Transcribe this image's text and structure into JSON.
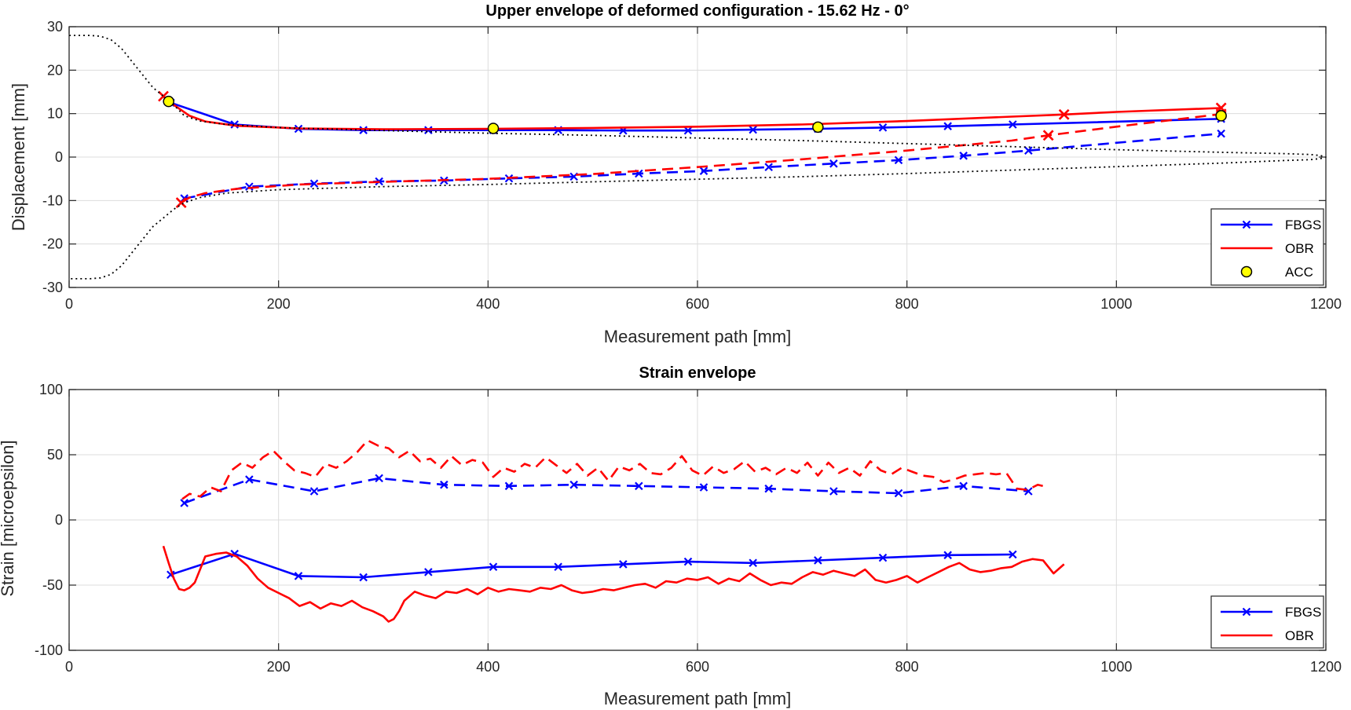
{
  "chart_data": [
    {
      "type": "line",
      "title": "Upper envelope of deformed configuration - 15.62 Hz - 0°",
      "xlabel": "Measurement path [mm]",
      "ylabel": "Displacement [mm]",
      "xlim": [
        0,
        1200
      ],
      "ylim": [
        -30,
        30
      ],
      "xticks": [
        0,
        200,
        400,
        600,
        800,
        1000,
        1200
      ],
      "yticks": [
        -30,
        -20,
        -10,
        0,
        10,
        20,
        30
      ],
      "grid": true,
      "legend_position": "bottom-right",
      "legend": [
        "FBGS",
        "OBR",
        "ACC"
      ],
      "series": [
        {
          "name": "FBGS",
          "color": "#0000ff",
          "style": "solid",
          "marker": "x",
          "x": [
            97,
            158,
            219,
            281,
            343,
            405,
            467,
            529,
            591,
            653,
            715,
            777,
            839,
            901,
            1100
          ],
          "y": [
            12.5,
            7.5,
            6.5,
            6.2,
            6.2,
            6.2,
            6.2,
            6.1,
            6.1,
            6.3,
            6.5,
            6.8,
            7.1,
            7.5,
            8.8
          ]
        },
        {
          "name": "FBGS",
          "color": "#0000ff",
          "style": "dashed",
          "marker": "x",
          "x": [
            110,
            172,
            234,
            296,
            358,
            420,
            482,
            544,
            606,
            668,
            730,
            792,
            854,
            916,
            1100
          ],
          "y": [
            -9.5,
            -6.8,
            -6.1,
            -5.6,
            -5.4,
            -4.9,
            -4.5,
            -3.8,
            -3.2,
            -2.3,
            -1.5,
            -0.7,
            0.3,
            1.5,
            5.4
          ]
        },
        {
          "name": "OBR",
          "color": "#ff0000",
          "style": "solid",
          "marker": "end-x",
          "x": [
            90,
            100,
            115,
            130,
            160,
            220,
            300,
            400,
            500,
            600,
            700,
            800,
            900,
            950,
            1000,
            1100
          ],
          "y": [
            14,
            12,
            9.5,
            8.2,
            7.2,
            6.6,
            6.4,
            6.5,
            6.7,
            7.0,
            7.5,
            8.3,
            9.3,
            9.8,
            10.4,
            11.3
          ]
        },
        {
          "name": "OBR",
          "color": "#ff0000",
          "style": "dashed",
          "marker": "end-x",
          "x": [
            107,
            115,
            130,
            160,
            220,
            300,
            400,
            500,
            600,
            700,
            800,
            900,
            935,
            1000,
            1100
          ],
          "y": [
            -10.5,
            -9.3,
            -8.3,
            -7.3,
            -6.3,
            -5.7,
            -5.0,
            -3.9,
            -2.3,
            -0.5,
            1.5,
            3.8,
            5.0,
            7.0,
            9.9
          ]
        },
        {
          "name": "",
          "color": "#000000",
          "style": "dotted",
          "marker": "none",
          "x": [
            0,
            10,
            20,
            30,
            40,
            50,
            60,
            70,
            80,
            90,
            100,
            110,
            125,
            150,
            200,
            300,
            400,
            500,
            600,
            700,
            800,
            900,
            1000,
            1100,
            1160,
            1185,
            1195,
            1200,
            1195,
            1185,
            1160,
            1100,
            1000,
            900,
            800,
            700,
            600,
            500,
            400,
            300,
            200,
            150,
            125,
            110,
            100,
            90,
            80,
            70,
            60,
            50,
            40,
            30,
            20,
            10,
            0
          ],
          "y": [
            28,
            28,
            28,
            27.8,
            27,
            25,
            22,
            19,
            16,
            14,
            12,
            9.5,
            8.3,
            7.5,
            6.8,
            6.1,
            5.5,
            5.0,
            4.4,
            3.8,
            3.1,
            2.4,
            1.7,
            1.1,
            0.8,
            0.6,
            0.35,
            0,
            -0.35,
            -0.6,
            -0.8,
            -1.4,
            -2.2,
            -3.0,
            -3.8,
            -4.5,
            -5.1,
            -5.7,
            -6.3,
            -6.8,
            -7.5,
            -8.3,
            -9.3,
            -10.5,
            -12,
            -14,
            -16,
            -19,
            -22,
            -25,
            -27,
            -27.8,
            -28,
            -28,
            -28
          ]
        },
        {
          "name": "ACC",
          "color": "#ffff00",
          "style": "none",
          "marker": "circle",
          "x": [
            95,
            405,
            715,
            1100
          ],
          "y": [
            12.8,
            6.6,
            6.9,
            9.5
          ]
        }
      ]
    },
    {
      "type": "line",
      "title": "Strain envelope",
      "xlabel": "Measurement path [mm]",
      "ylabel": "Strain [microepsilon]",
      "xlim": [
        0,
        1200
      ],
      "ylim": [
        -100,
        100
      ],
      "xticks": [
        0,
        200,
        400,
        600,
        800,
        1000,
        1200
      ],
      "yticks": [
        -100,
        -50,
        0,
        50,
        100
      ],
      "grid": true,
      "legend_position": "bottom-right",
      "legend": [
        "FBGS",
        "OBR"
      ],
      "series": [
        {
          "name": "FBGS",
          "color": "#0000ff",
          "style": "solid",
          "marker": "x",
          "x": [
            97,
            158,
            219,
            281,
            343,
            405,
            467,
            529,
            591,
            653,
            715,
            777,
            839,
            901
          ],
          "y": [
            -42,
            -26,
            -43,
            -44,
            -40,
            -36,
            -36,
            -34,
            -32,
            -33,
            -31,
            -29,
            -27,
            -26.5
          ]
        },
        {
          "name": "FBGS",
          "color": "#0000ff",
          "style": "dashed",
          "marker": "x",
          "x": [
            110,
            172,
            234,
            296,
            358,
            420,
            482,
            544,
            606,
            668,
            730,
            792,
            854,
            916
          ],
          "y": [
            13,
            31,
            22,
            32,
            27,
            26,
            27,
            26,
            25,
            24,
            22,
            20.5,
            26,
            22
          ]
        },
        {
          "name": "OBR",
          "color": "#ff0000",
          "style": "solid",
          "marker": "none",
          "x": [
            90,
            95,
            100,
            105,
            110,
            115,
            120,
            125,
            130,
            140,
            150,
            160,
            170,
            180,
            190,
            200,
            210,
            220,
            230,
            240,
            250,
            260,
            270,
            280,
            290,
            300,
            305,
            310,
            315,
            320,
            330,
            340,
            350,
            360,
            370,
            380,
            390,
            400,
            410,
            420,
            430,
            440,
            450,
            460,
            470,
            480,
            490,
            500,
            510,
            520,
            530,
            540,
            550,
            560,
            570,
            580,
            590,
            600,
            610,
            620,
            630,
            640,
            650,
            660,
            670,
            680,
            690,
            700,
            710,
            720,
            730,
            740,
            750,
            760,
            770,
            780,
            790,
            800,
            810,
            820,
            830,
            840,
            850,
            860,
            870,
            880,
            890,
            900,
            910,
            920,
            930,
            940,
            950
          ],
          "y": [
            -20,
            -33,
            -45,
            -53,
            -54,
            -52,
            -48,
            -38,
            -28,
            -26,
            -25,
            -28,
            -35,
            -45,
            -52,
            -56,
            -60,
            -66,
            -63,
            -68,
            -64,
            -66,
            -62,
            -67,
            -70,
            -74,
            -78,
            -76,
            -70,
            -62,
            -55,
            -58,
            -60,
            -55,
            -56,
            -53,
            -57,
            -52,
            -55,
            -53,
            -54,
            -55,
            -52,
            -53,
            -50,
            -54,
            -56,
            -55,
            -53,
            -54,
            -52,
            -50,
            -49,
            -52,
            -47,
            -48,
            -45,
            -46,
            -44,
            -49,
            -45,
            -47,
            -41,
            -46,
            -50,
            -48,
            -49,
            -44,
            -40,
            -42,
            -39,
            -41,
            -43,
            -38,
            -46,
            -48,
            -46,
            -43,
            -48,
            -44,
            -40,
            -36,
            -33,
            -38,
            -40,
            -39,
            -37,
            -36,
            -32,
            -30,
            -31,
            -41,
            -34
          ]
        },
        {
          "name": "OBR",
          "color": "#ff0000",
          "style": "dashed",
          "marker": "none",
          "x": [
            108,
            115,
            125,
            135,
            145,
            155,
            165,
            175,
            185,
            195,
            205,
            215,
            225,
            235,
            245,
            255,
            265,
            275,
            285,
            295,
            305,
            315,
            325,
            335,
            345,
            355,
            365,
            375,
            385,
            395,
            405,
            415,
            425,
            435,
            445,
            455,
            465,
            475,
            485,
            495,
            505,
            515,
            525,
            535,
            545,
            555,
            565,
            575,
            585,
            595,
            605,
            615,
            625,
            635,
            645,
            655,
            665,
            675,
            685,
            695,
            705,
            715,
            725,
            735,
            745,
            755,
            765,
            775,
            785,
            795,
            805,
            815,
            825,
            835,
            845,
            855,
            865,
            875,
            885,
            895,
            905,
            915,
            925,
            935
          ],
          "y": [
            16,
            20,
            18,
            25,
            22,
            38,
            44,
            40,
            48,
            53,
            45,
            38,
            36,
            33,
            43,
            40,
            45,
            52,
            61,
            57,
            55,
            48,
            53,
            45,
            47,
            40,
            49,
            42,
            46,
            44,
            33,
            40,
            37,
            43,
            40,
            48,
            42,
            36,
            43,
            34,
            40,
            30,
            41,
            38,
            43,
            36,
            35,
            40,
            49,
            38,
            34,
            41,
            36,
            39,
            45,
            37,
            40,
            35,
            40,
            36,
            44,
            34,
            44,
            36,
            40,
            34,
            45,
            38,
            35,
            40,
            37,
            34,
            33,
            29,
            31,
            34,
            35,
            36,
            35,
            36,
            24,
            23,
            27,
            25
          ]
        }
      ]
    }
  ]
}
